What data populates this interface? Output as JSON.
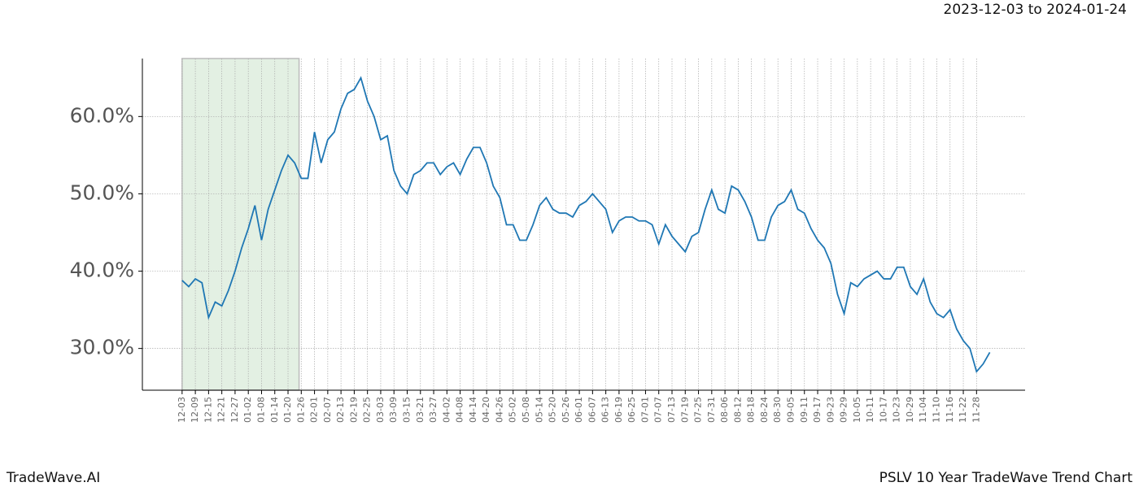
{
  "chart_data": {
    "type": "line",
    "date_range": "2023-12-03 to 2024-01-24",
    "brand": "TradeWave.AI",
    "title": "PSLV 10 Year TradeWave Trend Chart",
    "shaded_range": [
      0,
      53
    ],
    "shade_color": "#e3f0e3",
    "grid": true,
    "xlim": [
      -18,
      382
    ],
    "ylim": [
      24.6,
      67.5
    ],
    "yticks": [
      {
        "value": 30,
        "label": "30.0%"
      },
      {
        "value": 40,
        "label": "40.0%"
      },
      {
        "value": 50,
        "label": "50.0%"
      },
      {
        "value": 60,
        "label": "60.0%"
      }
    ],
    "xticks": [
      {
        "value": 0,
        "label": "12-03"
      },
      {
        "value": 6,
        "label": "12-09"
      },
      {
        "value": 12,
        "label": "12-15"
      },
      {
        "value": 18,
        "label": "12-21"
      },
      {
        "value": 24,
        "label": "12-27"
      },
      {
        "value": 30,
        "label": "01-02"
      },
      {
        "value": 36,
        "label": "01-08"
      },
      {
        "value": 42,
        "label": "01-14"
      },
      {
        "value": 48,
        "label": "01-20"
      },
      {
        "value": 54,
        "label": "01-26"
      },
      {
        "value": 60,
        "label": "02-01"
      },
      {
        "value": 66,
        "label": "02-07"
      },
      {
        "value": 72,
        "label": "02-13"
      },
      {
        "value": 78,
        "label": "02-19"
      },
      {
        "value": 84,
        "label": "02-25"
      },
      {
        "value": 90,
        "label": "03-03"
      },
      {
        "value": 96,
        "label": "03-09"
      },
      {
        "value": 102,
        "label": "03-15"
      },
      {
        "value": 108,
        "label": "03-21"
      },
      {
        "value": 114,
        "label": "03-27"
      },
      {
        "value": 120,
        "label": "04-02"
      },
      {
        "value": 126,
        "label": "04-08"
      },
      {
        "value": 132,
        "label": "04-14"
      },
      {
        "value": 138,
        "label": "04-20"
      },
      {
        "value": 144,
        "label": "04-26"
      },
      {
        "value": 150,
        "label": "05-02"
      },
      {
        "value": 156,
        "label": "05-08"
      },
      {
        "value": 162,
        "label": "05-14"
      },
      {
        "value": 168,
        "label": "05-20"
      },
      {
        "value": 174,
        "label": "05-26"
      },
      {
        "value": 180,
        "label": "06-01"
      },
      {
        "value": 186,
        "label": "06-07"
      },
      {
        "value": 192,
        "label": "06-13"
      },
      {
        "value": 198,
        "label": "06-19"
      },
      {
        "value": 204,
        "label": "06-25"
      },
      {
        "value": 210,
        "label": "07-01"
      },
      {
        "value": 216,
        "label": "07-07"
      },
      {
        "value": 222,
        "label": "07-13"
      },
      {
        "value": 228,
        "label": "07-19"
      },
      {
        "value": 234,
        "label": "07-25"
      },
      {
        "value": 240,
        "label": "07-31"
      },
      {
        "value": 246,
        "label": "08-06"
      },
      {
        "value": 252,
        "label": "08-12"
      },
      {
        "value": 258,
        "label": "08-18"
      },
      {
        "value": 264,
        "label": "08-24"
      },
      {
        "value": 270,
        "label": "08-30"
      },
      {
        "value": 276,
        "label": "09-05"
      },
      {
        "value": 282,
        "label": "09-11"
      },
      {
        "value": 288,
        "label": "09-17"
      },
      {
        "value": 294,
        "label": "09-23"
      },
      {
        "value": 300,
        "label": "09-29"
      },
      {
        "value": 306,
        "label": "10-05"
      },
      {
        "value": 312,
        "label": "10-11"
      },
      {
        "value": 318,
        "label": "10-17"
      },
      {
        "value": 324,
        "label": "10-23"
      },
      {
        "value": 330,
        "label": "10-29"
      },
      {
        "value": 336,
        "label": "11-04"
      },
      {
        "value": 342,
        "label": "11-10"
      },
      {
        "value": 348,
        "label": "11-16"
      },
      {
        "value": 354,
        "label": "11-22"
      },
      {
        "value": 360,
        "label": "11-28"
      }
    ],
    "x": [
      0,
      3,
      6,
      9,
      12,
      15,
      18,
      21,
      24,
      27,
      30,
      33,
      36,
      39,
      42,
      45,
      48,
      51,
      54,
      57,
      60,
      63,
      66,
      69,
      72,
      75,
      78,
      81,
      84,
      87,
      90,
      93,
      96,
      99,
      102,
      105,
      108,
      111,
      114,
      117,
      120,
      123,
      126,
      129,
      132,
      135,
      138,
      141,
      144,
      147,
      150,
      153,
      156,
      159,
      162,
      165,
      168,
      171,
      174,
      177,
      180,
      183,
      186,
      189,
      192,
      195,
      198,
      201,
      204,
      207,
      210,
      213,
      216,
      219,
      222,
      225,
      228,
      231,
      234,
      237,
      240,
      243,
      246,
      249,
      252,
      255,
      258,
      261,
      264,
      267,
      270,
      273,
      276,
      279,
      282,
      285,
      288,
      291,
      294,
      297,
      300,
      303,
      306,
      309,
      312,
      315,
      318,
      321,
      324,
      327,
      330,
      333,
      336,
      339,
      342,
      345,
      348,
      351,
      354,
      357,
      360,
      363,
      366
    ],
    "series": [
      {
        "color": "#1f77b4",
        "values": [
          38.8,
          38.0,
          39.0,
          38.5,
          34.0,
          36.0,
          35.5,
          37.5,
          40.0,
          43.0,
          45.5,
          48.5,
          44.0,
          48.0,
          50.5,
          53.0,
          55.0,
          54.0,
          52.0,
          52.0,
          58.0,
          54.0,
          57.0,
          58.0,
          61.0,
          63.0,
          63.5,
          65.0,
          62.0,
          60.0,
          57.0,
          57.5,
          53.0,
          51.0,
          50.0,
          52.5,
          53.0,
          54.0,
          54.0,
          52.5,
          53.5,
          54.0,
          52.5,
          54.5,
          56.0,
          56.0,
          54.0,
          51.0,
          49.5,
          46.0,
          46.0,
          44.0,
          44.0,
          46.0,
          48.5,
          49.5,
          48.0,
          47.5,
          47.5,
          47.0,
          48.5,
          49.0,
          50.0,
          49.0,
          48.0,
          45.0,
          46.5,
          47.0,
          47.0,
          46.5,
          46.5,
          46.0,
          43.5,
          46.0,
          44.5,
          43.5,
          42.5,
          44.5,
          45.0,
          48.0,
          50.5,
          48.0,
          47.5,
          51.0,
          50.5,
          49.0,
          47.0,
          44.0,
          44.0,
          47.0,
          48.5,
          49.0,
          50.5,
          48.0,
          47.5,
          45.5,
          44.0,
          43.0,
          41.0,
          37.0,
          34.5,
          38.5,
          38.0,
          39.0,
          39.5,
          40.0,
          39.0,
          39.0,
          40.5,
          40.5,
          38.0,
          37.0,
          39.0,
          36.0,
          34.5,
          34.0,
          35.0,
          32.5,
          31.0,
          30.0,
          27.0,
          28.0,
          29.5
        ]
      }
    ]
  }
}
